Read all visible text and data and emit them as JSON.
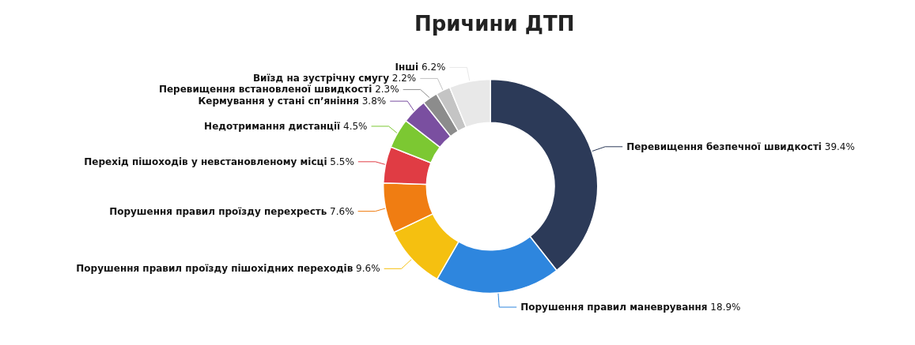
{
  "chart_data": {
    "type": "donut",
    "title": "Причини ДТП",
    "categories": [
      "Перевищення безпечної швидкості",
      "Порушення правил маневрування",
      "Порушення правил проїзду пішохідних переходів",
      "Порушення правил проїзду перехресть",
      "Перехід пішоходів у невстановленому місці",
      "Недотримання дистанції",
      "Кермування у стані сп’яніння",
      "Перевищення встановленої швидкості",
      "Виїзд на зустрічну смугу",
      "Інші"
    ],
    "values": [
      39.4,
      18.9,
      9.6,
      7.6,
      5.5,
      4.5,
      3.8,
      2.3,
      2.2,
      6.2
    ],
    "value_labels": [
      "39.4%",
      "18.9%",
      "9.6%",
      "7.6%",
      "5.5%",
      "4.5%",
      "3.8%",
      "2.3%",
      "2.2%",
      "6.2%"
    ],
    "colors": [
      "#2c3a58",
      "#2e86de",
      "#f5c010",
      "#f07d12",
      "#e03c44",
      "#7cc832",
      "#7a4fa0",
      "#8c8c8c",
      "#c4c4c4",
      "#e8e8e8"
    ],
    "legend": false
  }
}
